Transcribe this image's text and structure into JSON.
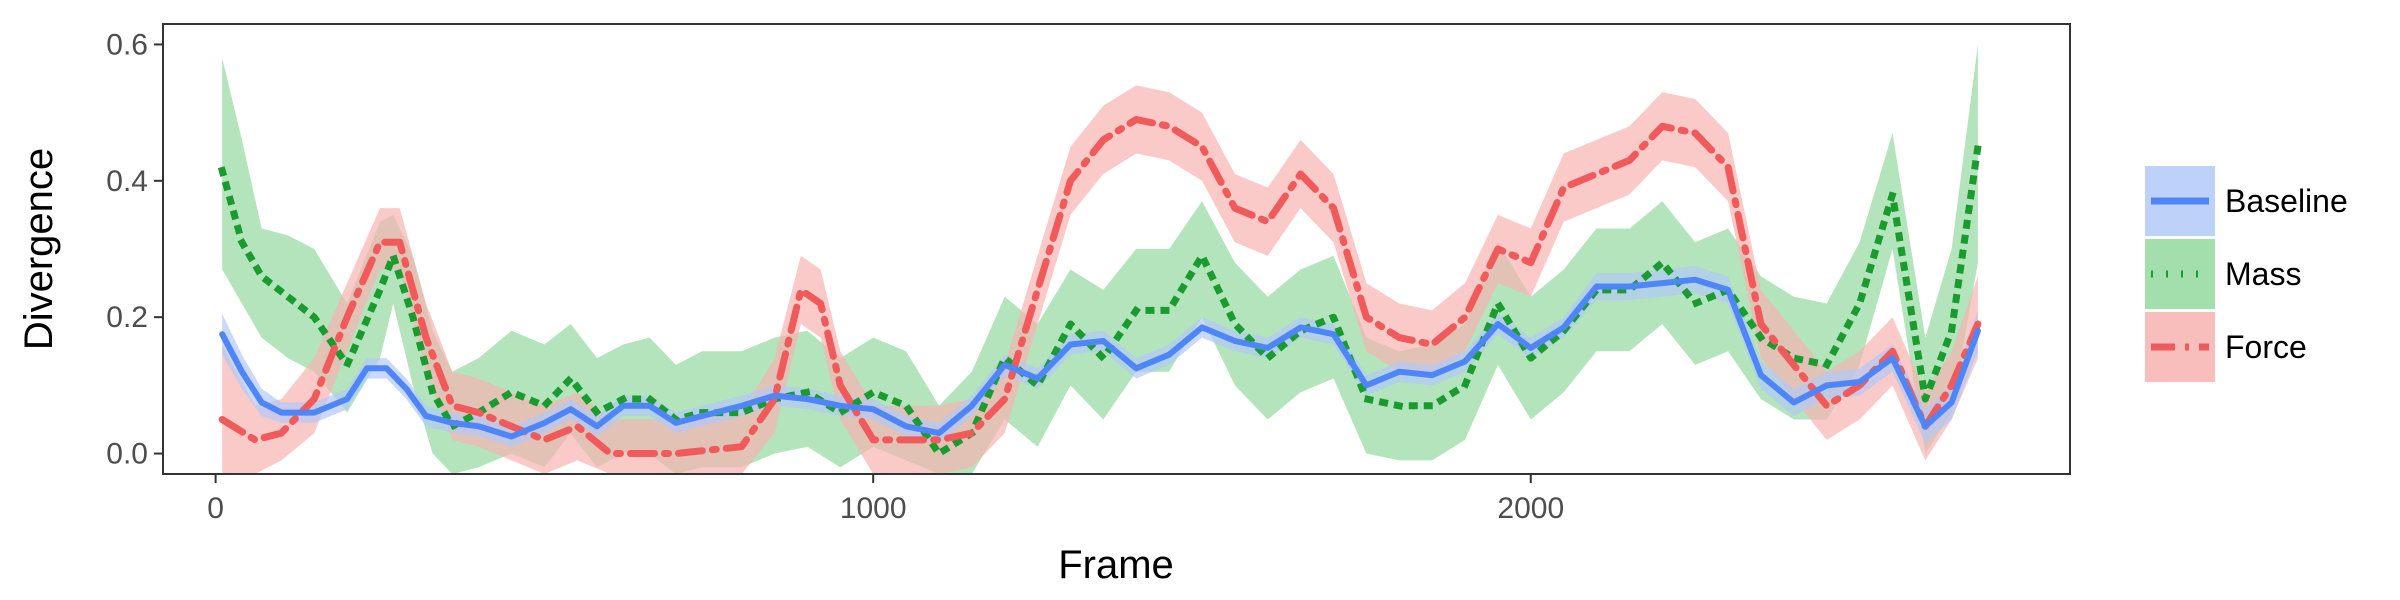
{
  "chart_data": {
    "type": "line",
    "title": "",
    "xlabel": "Frame",
    "ylabel": "Divergence",
    "xlim": [
      -80,
      2820
    ],
    "ylim": [
      -0.03,
      0.63
    ],
    "x_ticks": [
      0,
      1000,
      2000
    ],
    "x_tick_labels": [
      "0",
      "1000",
      "2000"
    ],
    "y_ticks": [
      0.0,
      0.2,
      0.4,
      0.6
    ],
    "y_tick_labels": [
      "0.0",
      "0.2",
      "0.4",
      "0.6"
    ],
    "grid": false,
    "legend_position": "right",
    "series": [
      {
        "name": "Baseline",
        "line_color": "#4f86f7",
        "fill_color": "#b3c9f7",
        "line_style": "solid",
        "points": [
          [
            10,
            0.175,
            0.145,
            0.205
          ],
          [
            40,
            0.12,
            0.095,
            0.145
          ],
          [
            70,
            0.075,
            0.055,
            0.095
          ],
          [
            100,
            0.06,
            0.045,
            0.075
          ],
          [
            150,
            0.06,
            0.045,
            0.075
          ],
          [
            200,
            0.08,
            0.065,
            0.095
          ],
          [
            230,
            0.125,
            0.11,
            0.14
          ],
          [
            260,
            0.125,
            0.11,
            0.14
          ],
          [
            290,
            0.095,
            0.08,
            0.11
          ],
          [
            320,
            0.055,
            0.04,
            0.07
          ],
          [
            360,
            0.045,
            0.03,
            0.06
          ],
          [
            400,
            0.04,
            0.025,
            0.055
          ],
          [
            450,
            0.025,
            0.01,
            0.04
          ],
          [
            500,
            0.045,
            0.03,
            0.06
          ],
          [
            540,
            0.065,
            0.05,
            0.08
          ],
          [
            580,
            0.04,
            0.025,
            0.055
          ],
          [
            620,
            0.07,
            0.055,
            0.085
          ],
          [
            660,
            0.07,
            0.055,
            0.085
          ],
          [
            700,
            0.045,
            0.03,
            0.06
          ],
          [
            740,
            0.055,
            0.04,
            0.07
          ],
          [
            800,
            0.07,
            0.055,
            0.085
          ],
          [
            850,
            0.085,
            0.07,
            0.1
          ],
          [
            900,
            0.08,
            0.065,
            0.095
          ],
          [
            950,
            0.07,
            0.055,
            0.085
          ],
          [
            1000,
            0.065,
            0.05,
            0.08
          ],
          [
            1050,
            0.04,
            0.025,
            0.055
          ],
          [
            1100,
            0.03,
            0.015,
            0.045
          ],
          [
            1150,
            0.07,
            0.055,
            0.085
          ],
          [
            1200,
            0.13,
            0.115,
            0.145
          ],
          [
            1250,
            0.11,
            0.095,
            0.125
          ],
          [
            1300,
            0.16,
            0.145,
            0.175
          ],
          [
            1350,
            0.165,
            0.15,
            0.18
          ],
          [
            1400,
            0.125,
            0.11,
            0.14
          ],
          [
            1450,
            0.145,
            0.13,
            0.16
          ],
          [
            1500,
            0.185,
            0.17,
            0.2
          ],
          [
            1550,
            0.165,
            0.15,
            0.18
          ],
          [
            1600,
            0.155,
            0.14,
            0.17
          ],
          [
            1650,
            0.185,
            0.17,
            0.2
          ],
          [
            1700,
            0.175,
            0.16,
            0.19
          ],
          [
            1750,
            0.1,
            0.085,
            0.115
          ],
          [
            1800,
            0.12,
            0.105,
            0.135
          ],
          [
            1850,
            0.115,
            0.1,
            0.13
          ],
          [
            1900,
            0.135,
            0.12,
            0.15
          ],
          [
            1950,
            0.19,
            0.175,
            0.205
          ],
          [
            2000,
            0.155,
            0.14,
            0.17
          ],
          [
            2050,
            0.185,
            0.17,
            0.2
          ],
          [
            2100,
            0.245,
            0.225,
            0.265
          ],
          [
            2150,
            0.245,
            0.225,
            0.265
          ],
          [
            2200,
            0.25,
            0.23,
            0.27
          ],
          [
            2250,
            0.255,
            0.235,
            0.275
          ],
          [
            2300,
            0.24,
            0.22,
            0.26
          ],
          [
            2350,
            0.115,
            0.095,
            0.135
          ],
          [
            2400,
            0.075,
            0.055,
            0.095
          ],
          [
            2450,
            0.1,
            0.08,
            0.12
          ],
          [
            2500,
            0.105,
            0.085,
            0.125
          ],
          [
            2550,
            0.14,
            0.12,
            0.16
          ],
          [
            2600,
            0.04,
            0.015,
            0.065
          ],
          [
            2640,
            0.075,
            0.05,
            0.1
          ],
          [
            2680,
            0.18,
            0.15,
            0.21
          ]
        ]
      },
      {
        "name": "Mass",
        "line_color": "#1a9b2f",
        "fill_color": "#93d99e",
        "line_style": "dotted",
        "points": [
          [
            10,
            0.415,
            0.27,
            0.58
          ],
          [
            40,
            0.31,
            0.22,
            0.46
          ],
          [
            70,
            0.26,
            0.17,
            0.33
          ],
          [
            110,
            0.23,
            0.14,
            0.32
          ],
          [
            150,
            0.2,
            0.12,
            0.3
          ],
          [
            200,
            0.13,
            0.06,
            0.22
          ],
          [
            250,
            0.24,
            0.14,
            0.34
          ],
          [
            270,
            0.29,
            0.22,
            0.35
          ],
          [
            300,
            0.2,
            0.1,
            0.29
          ],
          [
            330,
            0.09,
            0.0,
            0.18
          ],
          [
            360,
            0.04,
            -0.03,
            0.12
          ],
          [
            400,
            0.06,
            -0.02,
            0.14
          ],
          [
            450,
            0.09,
            0.0,
            0.18
          ],
          [
            500,
            0.07,
            -0.02,
            0.16
          ],
          [
            540,
            0.11,
            0.03,
            0.19
          ],
          [
            580,
            0.06,
            -0.02,
            0.14
          ],
          [
            620,
            0.08,
            0.0,
            0.16
          ],
          [
            660,
            0.08,
            0.0,
            0.17
          ],
          [
            700,
            0.05,
            -0.03,
            0.13
          ],
          [
            740,
            0.06,
            -0.02,
            0.15
          ],
          [
            800,
            0.06,
            -0.02,
            0.15
          ],
          [
            850,
            0.08,
            0.0,
            0.17
          ],
          [
            900,
            0.09,
            0.01,
            0.18
          ],
          [
            950,
            0.06,
            -0.02,
            0.14
          ],
          [
            1000,
            0.09,
            0.01,
            0.17
          ],
          [
            1050,
            0.07,
            -0.01,
            0.15
          ],
          [
            1100,
            0.0,
            -0.03,
            0.07
          ],
          [
            1150,
            0.03,
            -0.03,
            0.12
          ],
          [
            1200,
            0.14,
            0.05,
            0.23
          ],
          [
            1250,
            0.1,
            0.01,
            0.19
          ],
          [
            1300,
            0.19,
            0.1,
            0.27
          ],
          [
            1350,
            0.14,
            0.05,
            0.24
          ],
          [
            1400,
            0.21,
            0.12,
            0.3
          ],
          [
            1450,
            0.21,
            0.12,
            0.3
          ],
          [
            1500,
            0.29,
            0.2,
            0.37
          ],
          [
            1550,
            0.19,
            0.1,
            0.28
          ],
          [
            1600,
            0.14,
            0.05,
            0.23
          ],
          [
            1650,
            0.18,
            0.09,
            0.27
          ],
          [
            1700,
            0.2,
            0.11,
            0.29
          ],
          [
            1750,
            0.08,
            0.0,
            0.17
          ],
          [
            1800,
            0.07,
            -0.01,
            0.15
          ],
          [
            1850,
            0.07,
            -0.01,
            0.16
          ],
          [
            1900,
            0.1,
            0.02,
            0.19
          ],
          [
            1950,
            0.22,
            0.13,
            0.31
          ],
          [
            2000,
            0.14,
            0.05,
            0.23
          ],
          [
            2050,
            0.18,
            0.09,
            0.27
          ],
          [
            2100,
            0.24,
            0.15,
            0.33
          ],
          [
            2150,
            0.24,
            0.15,
            0.33
          ],
          [
            2200,
            0.28,
            0.19,
            0.37
          ],
          [
            2250,
            0.22,
            0.13,
            0.31
          ],
          [
            2300,
            0.24,
            0.15,
            0.33
          ],
          [
            2350,
            0.17,
            0.08,
            0.26
          ],
          [
            2400,
            0.14,
            0.05,
            0.23
          ],
          [
            2450,
            0.13,
            0.05,
            0.22
          ],
          [
            2500,
            0.22,
            0.13,
            0.31
          ],
          [
            2550,
            0.38,
            0.3,
            0.47
          ],
          [
            2600,
            0.08,
            0.0,
            0.17
          ],
          [
            2640,
            0.18,
            0.06,
            0.3
          ],
          [
            2680,
            0.45,
            0.28,
            0.6
          ]
        ]
      },
      {
        "name": "Force",
        "line_color": "#f05a5a",
        "fill_color": "#f6b3b0",
        "line_style": "dashdot",
        "points": [
          [
            10,
            0.05,
            -0.03,
            0.16
          ],
          [
            60,
            0.02,
            -0.03,
            0.07
          ],
          [
            100,
            0.03,
            -0.01,
            0.08
          ],
          [
            150,
            0.08,
            0.03,
            0.14
          ],
          [
            200,
            0.2,
            0.15,
            0.25
          ],
          [
            250,
            0.31,
            0.27,
            0.36
          ],
          [
            280,
            0.31,
            0.27,
            0.36
          ],
          [
            320,
            0.17,
            0.12,
            0.22
          ],
          [
            360,
            0.07,
            0.02,
            0.12
          ],
          [
            400,
            0.06,
            0.01,
            0.11
          ],
          [
            450,
            0.04,
            -0.01,
            0.09
          ],
          [
            500,
            0.02,
            -0.03,
            0.07
          ],
          [
            550,
            0.04,
            -0.01,
            0.09
          ],
          [
            600,
            0.0,
            -0.03,
            0.05
          ],
          [
            700,
            0.0,
            -0.03,
            0.05
          ],
          [
            800,
            0.01,
            -0.03,
            0.06
          ],
          [
            850,
            0.08,
            0.03,
            0.14
          ],
          [
            890,
            0.24,
            0.19,
            0.29
          ],
          [
            920,
            0.22,
            0.17,
            0.27
          ],
          [
            950,
            0.1,
            0.05,
            0.15
          ],
          [
            1000,
            0.02,
            -0.03,
            0.07
          ],
          [
            1050,
            0.02,
            -0.03,
            0.07
          ],
          [
            1100,
            0.02,
            -0.03,
            0.07
          ],
          [
            1150,
            0.03,
            -0.02,
            0.08
          ],
          [
            1200,
            0.08,
            0.03,
            0.13
          ],
          [
            1250,
            0.24,
            0.19,
            0.29
          ],
          [
            1300,
            0.4,
            0.35,
            0.45
          ],
          [
            1350,
            0.46,
            0.41,
            0.51
          ],
          [
            1400,
            0.49,
            0.44,
            0.54
          ],
          [
            1450,
            0.48,
            0.43,
            0.53
          ],
          [
            1500,
            0.45,
            0.4,
            0.5
          ],
          [
            1550,
            0.36,
            0.31,
            0.41
          ],
          [
            1600,
            0.34,
            0.29,
            0.39
          ],
          [
            1650,
            0.41,
            0.36,
            0.46
          ],
          [
            1700,
            0.36,
            0.31,
            0.41
          ],
          [
            1750,
            0.2,
            0.15,
            0.25
          ],
          [
            1800,
            0.17,
            0.12,
            0.22
          ],
          [
            1850,
            0.16,
            0.11,
            0.21
          ],
          [
            1900,
            0.2,
            0.15,
            0.25
          ],
          [
            1950,
            0.3,
            0.25,
            0.35
          ],
          [
            2000,
            0.28,
            0.23,
            0.33
          ],
          [
            2050,
            0.39,
            0.34,
            0.44
          ],
          [
            2100,
            0.41,
            0.36,
            0.46
          ],
          [
            2150,
            0.43,
            0.38,
            0.48
          ],
          [
            2200,
            0.48,
            0.43,
            0.53
          ],
          [
            2250,
            0.47,
            0.42,
            0.52
          ],
          [
            2300,
            0.42,
            0.37,
            0.47
          ],
          [
            2350,
            0.19,
            0.14,
            0.24
          ],
          [
            2400,
            0.13,
            0.08,
            0.18
          ],
          [
            2450,
            0.07,
            0.02,
            0.12
          ],
          [
            2500,
            0.1,
            0.05,
            0.15
          ],
          [
            2550,
            0.15,
            0.1,
            0.2
          ],
          [
            2600,
            0.04,
            -0.01,
            0.09
          ],
          [
            2640,
            0.1,
            0.05,
            0.15
          ],
          [
            2680,
            0.19,
            0.14,
            0.26
          ]
        ]
      }
    ]
  }
}
